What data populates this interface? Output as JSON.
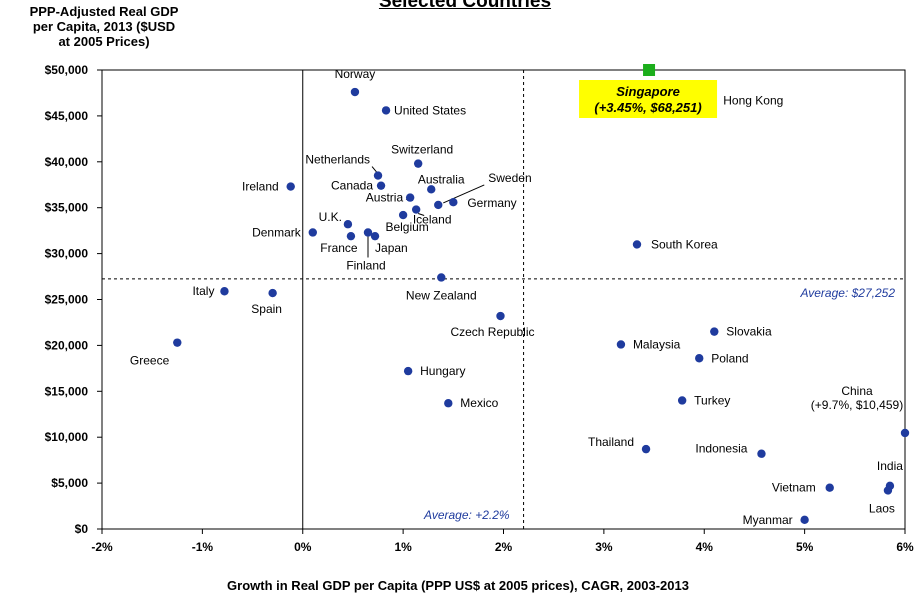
{
  "chart_data": {
    "type": "scatter",
    "title": "Selected Countries",
    "ylabel_lines": [
      "PPP-Adjusted Real GDP",
      "per Capita, 2013 ($USD",
      "at 2005 Prices)"
    ],
    "xlabel": "Growth in Real GDP per Capita (PPP US$ at 2005 prices), CAGR, 2003-2013",
    "xlim": [
      -2,
      6
    ],
    "ylim": [
      0,
      50000
    ],
    "x_ticks": [
      {
        "v": -2,
        "label": "-2%"
      },
      {
        "v": -1,
        "label": "-1%"
      },
      {
        "v": 0,
        "label": "0%"
      },
      {
        "v": 1,
        "label": "1%"
      },
      {
        "v": 2,
        "label": "2%"
      },
      {
        "v": 3,
        "label": "3%"
      },
      {
        "v": 4,
        "label": "4%"
      },
      {
        "v": 5,
        "label": "5%"
      },
      {
        "v": 6,
        "label": "6%"
      }
    ],
    "y_ticks": [
      {
        "v": 0,
        "label": "$0"
      },
      {
        "v": 5000,
        "label": "$5,000"
      },
      {
        "v": 10000,
        "label": "$10,000"
      },
      {
        "v": 15000,
        "label": "$15,000"
      },
      {
        "v": 20000,
        "label": "$20,000"
      },
      {
        "v": 25000,
        "label": "$25,000"
      },
      {
        "v": 30000,
        "label": "$30,000"
      },
      {
        "v": 35000,
        "label": "$35,000"
      },
      {
        "v": 40000,
        "label": "$40,000"
      },
      {
        "v": 45000,
        "label": "$45,000"
      },
      {
        "v": 50000,
        "label": "$50,000"
      }
    ],
    "avg_x": 2.2,
    "avg_y": 27252,
    "avg_x_label": "Average: +2.2%",
    "avg_y_label": "Average: $27,252",
    "point_color": "#1f3b9e",
    "highlight_color": "#1cae1c",
    "callout_bg": "#ffff00",
    "points": [
      {
        "name": "Norway",
        "x": 0.52,
        "y": 47600
      },
      {
        "name": "United States",
        "x": 0.83,
        "y": 45600
      },
      {
        "name": "Hong Kong",
        "x": 4.05,
        "y": 46700
      },
      {
        "name": "Switzerland",
        "x": 1.15,
        "y": 39800
      },
      {
        "name": "Netherlands",
        "x": 0.75,
        "y": 38500
      },
      {
        "name": "Canada",
        "x": 0.78,
        "y": 37400
      },
      {
        "name": "Australia",
        "x": 1.28,
        "y": 37000
      },
      {
        "name": "Ireland",
        "x": -0.12,
        "y": 37300
      },
      {
        "name": "Austria",
        "x": 1.07,
        "y": 36100
      },
      {
        "name": "Sweden",
        "x": 1.35,
        "y": 35300
      },
      {
        "name": "Germany",
        "x": 1.5,
        "y": 35600
      },
      {
        "name": "Iceland",
        "x": 1.13,
        "y": 34800
      },
      {
        "name": "Belgium",
        "x": 1.0,
        "y": 34200
      },
      {
        "name": "U.K.",
        "x": 0.45,
        "y": 33200
      },
      {
        "name": "Denmark",
        "x": 0.1,
        "y": 32300
      },
      {
        "name": "France",
        "x": 0.48,
        "y": 31900
      },
      {
        "name": "Finland",
        "x": 0.65,
        "y": 32300
      },
      {
        "name": "Japan",
        "x": 0.72,
        "y": 31900
      },
      {
        "name": "South Korea",
        "x": 3.33,
        "y": 31000
      },
      {
        "name": "New Zealand",
        "x": 1.38,
        "y": 27400
      },
      {
        "name": "Italy",
        "x": -0.78,
        "y": 25900
      },
      {
        "name": "Spain",
        "x": -0.3,
        "y": 25700
      },
      {
        "name": "Czech Republic",
        "x": 1.97,
        "y": 23200
      },
      {
        "name": "Slovakia",
        "x": 4.1,
        "y": 21500
      },
      {
        "name": "Malaysia",
        "x": 3.17,
        "y": 20100
      },
      {
        "name": "Greece",
        "x": -1.25,
        "y": 20300
      },
      {
        "name": "Poland",
        "x": 3.95,
        "y": 18600
      },
      {
        "name": "Hungary",
        "x": 1.05,
        "y": 17200
      },
      {
        "name": "Turkey",
        "x": 3.78,
        "y": 14000
      },
      {
        "name": "Mexico",
        "x": 1.45,
        "y": 13700
      },
      {
        "name": "China",
        "x": 6.0,
        "y": 10459
      },
      {
        "name": "Thailand",
        "x": 3.42,
        "y": 8700
      },
      {
        "name": "Indonesia",
        "x": 4.57,
        "y": 8200
      },
      {
        "name": "India",
        "x": 5.85,
        "y": 4700
      },
      {
        "name": "Vietnam",
        "x": 5.25,
        "y": 4500
      },
      {
        "name": "Laos",
        "x": 5.83,
        "y": 4200
      },
      {
        "name": "Myanmar",
        "x": 5.0,
        "y": 1000
      }
    ],
    "highlight": {
      "name": "Singapore",
      "x": 3.45,
      "y": 50000,
      "callout_lines": [
        "Singapore",
        "(+3.45%, $68,251)"
      ]
    },
    "china_callout_lines": [
      "China",
      "(+9.7%, $10,459)"
    ]
  }
}
